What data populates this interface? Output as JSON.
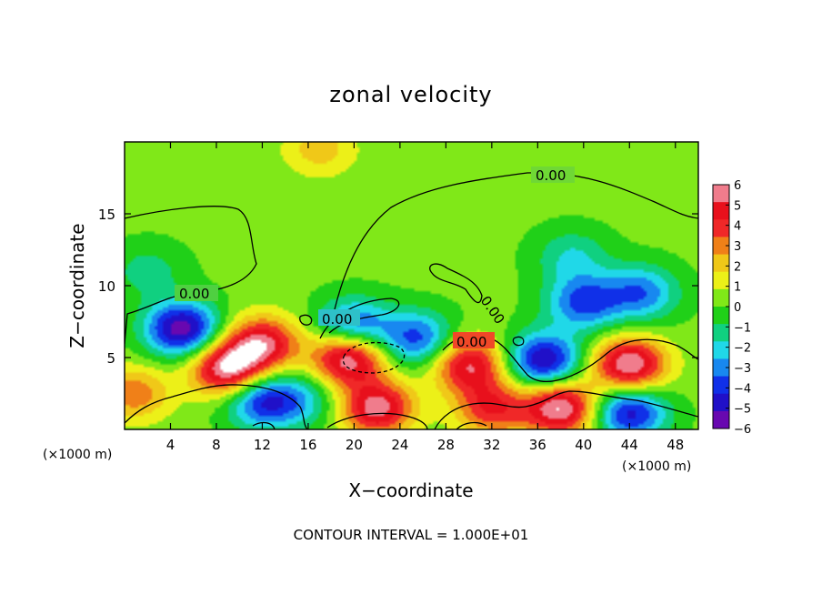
{
  "chart_data": {
    "type": "heatmap",
    "title": "zonal velocity",
    "xlabel": "X−coordinate",
    "ylabel": "Z−coordinate",
    "x_unit_label": "(×1000 m)",
    "x_unit_label_right": "(×1000 m)",
    "xlim": [
      0,
      50
    ],
    "ylim": [
      0,
      20
    ],
    "x_ticks": [
      4,
      8,
      12,
      16,
      20,
      24,
      28,
      32,
      36,
      40,
      44,
      48
    ],
    "x_tick_labels": [
      "4",
      "8",
      "12",
      "16",
      "20",
      "24",
      "28",
      "32",
      "36",
      "40",
      "44",
      "48"
    ],
    "y_ticks": [
      5,
      10,
      15
    ],
    "y_tick_labels": [
      "5",
      "10",
      "15"
    ],
    "colorbar": {
      "range": [
        -6,
        6
      ],
      "tick_labels": [
        "6",
        "5",
        "4",
        "3",
        "2",
        "1",
        "0",
        "−1",
        "−2",
        "−3",
        "−4",
        "−5",
        "−6"
      ],
      "colors": [
        "#f07c8c",
        "#e8101c",
        "#f02828",
        "#f08018",
        "#f0c818",
        "#ecf018",
        "#80e818",
        "#20d018",
        "#10d080",
        "#20d8e8",
        "#1888f0",
        "#1030e8",
        "#2010c8",
        "#6808b0"
      ]
    },
    "contour_labels": [
      "0.00",
      "0.00",
      "0.00",
      "0.00",
      "0.00"
    ],
    "contour_interval_text": "CONTOUR INTERVAL = 1.000E+01",
    "field_features": [
      {
        "x": 17,
        "z": 19.5,
        "value": 2.0
      },
      {
        "x": 5,
        "z": 7.0,
        "value": -6.0
      },
      {
        "x": 9,
        "z": 4.2,
        "value": 6.0
      },
      {
        "x": 12,
        "z": 6.0,
        "value": 5.0
      },
      {
        "x": 12,
        "z": 2.0,
        "value": -4.5
      },
      {
        "x": 19.5,
        "z": 5.0,
        "value": 6.0
      },
      {
        "x": 22,
        "z": 1.5,
        "value": 5.5
      },
      {
        "x": 20,
        "z": 7.2,
        "value": -4.0
      },
      {
        "x": 25.5,
        "z": 6.3,
        "value": -4.0
      },
      {
        "x": 30,
        "z": 4.5,
        "value": 5.0
      },
      {
        "x": 32,
        "z": 1.5,
        "value": 4.0
      },
      {
        "x": 36.5,
        "z": 4.8,
        "value": -5.5
      },
      {
        "x": 38,
        "z": 1.5,
        "value": 6.0
      },
      {
        "x": 44,
        "z": 4.5,
        "value": 6.0
      },
      {
        "x": 44,
        "z": 1.2,
        "value": -5.0
      },
      {
        "x": 40,
        "z": 8.8,
        "value": -4.0
      },
      {
        "x": 45,
        "z": 9.5,
        "value": -3.5
      },
      {
        "x": 39,
        "z": 12.0,
        "value": -2.0
      },
      {
        "x": 2.0,
        "z": 11.0,
        "value": -1.5
      },
      {
        "x": 15.5,
        "z": 2.0,
        "value": -2.0
      },
      {
        "x": 0.8,
        "z": 2.5,
        "value": 3.0
      }
    ]
  },
  "footer": {
    "contour_interval": "CONTOUR INTERVAL = 1.000E+01"
  }
}
